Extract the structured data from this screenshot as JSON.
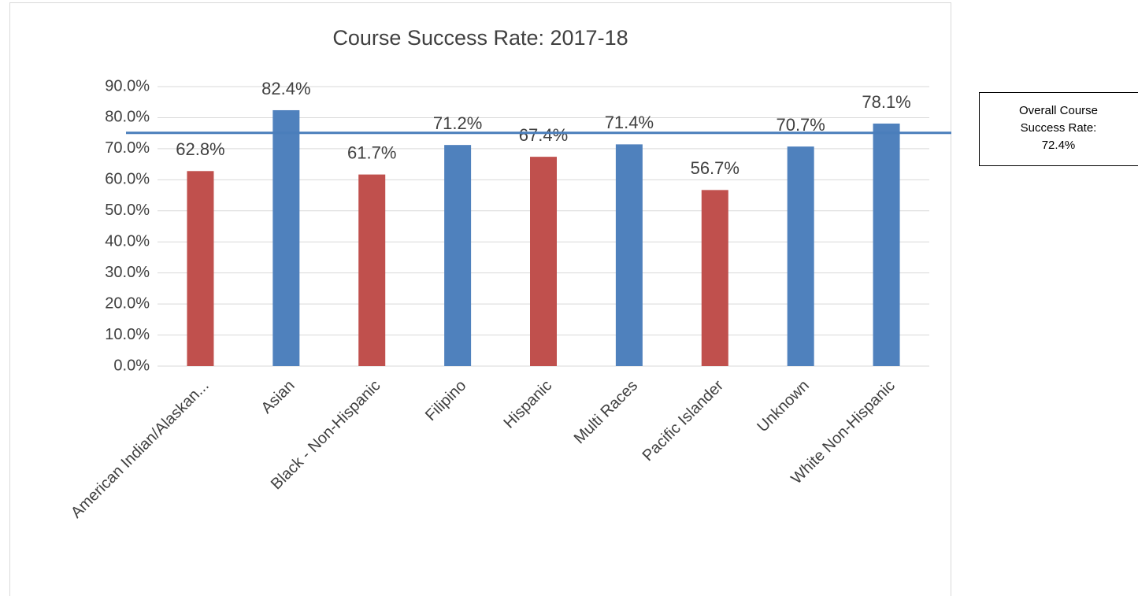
{
  "chart_data": {
    "type": "bar",
    "title": "Course Success Rate: 2017-18",
    "categories": [
      "American Indian/Alaskan...",
      "Asian",
      "Black - Non-Hispanic",
      "Filipino",
      "Hispanic",
      "Multi Races",
      "Pacific Islander",
      "Unknown",
      "White Non-Hispanic"
    ],
    "values": [
      62.8,
      82.4,
      61.7,
      71.2,
      67.4,
      71.4,
      56.7,
      70.7,
      78.1
    ],
    "value_labels": [
      "62.8%",
      "82.4%",
      "61.7%",
      "71.2%",
      "67.4%",
      "71.4%",
      "56.7%",
      "70.7%",
      "78.1%"
    ],
    "colors": [
      "#c0504d",
      "#4f81bd",
      "#c0504d",
      "#4f81bd",
      "#c0504d",
      "#4f81bd",
      "#c0504d",
      "#4f81bd",
      "#4f81bd"
    ],
    "ylim": [
      0,
      90
    ],
    "yticks": [
      {
        "value": 0,
        "label": "0.0%"
      },
      {
        "value": 10,
        "label": "10.0%"
      },
      {
        "value": 20,
        "label": "20.0%"
      },
      {
        "value": 30,
        "label": "30.0%"
      },
      {
        "value": 40,
        "label": "40.0%"
      },
      {
        "value": 50,
        "label": "50.0%"
      },
      {
        "value": 60,
        "label": "60.0%"
      },
      {
        "value": 70,
        "label": "70.0%"
      },
      {
        "value": 80,
        "label": "80.0%"
      },
      {
        "value": 90,
        "label": "90.0%"
      }
    ],
    "grid": true,
    "reference_line": {
      "value": 75.1,
      "color": "#4a7ebb"
    },
    "annotation": [
      "Overall Course",
      "Success Rate:",
      "72.4%"
    ]
  }
}
